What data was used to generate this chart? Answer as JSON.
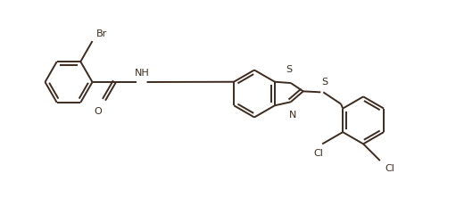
{
  "bg": "#ffffff",
  "bc": "#3d2b1f",
  "lw": 1.4,
  "fs": 8.0,
  "figsize": [
    5.11,
    2.5
  ],
  "dpi": 100,
  "xlim": [
    0.0,
    5.11
  ],
  "ylim": [
    0.0,
    2.5
  ]
}
